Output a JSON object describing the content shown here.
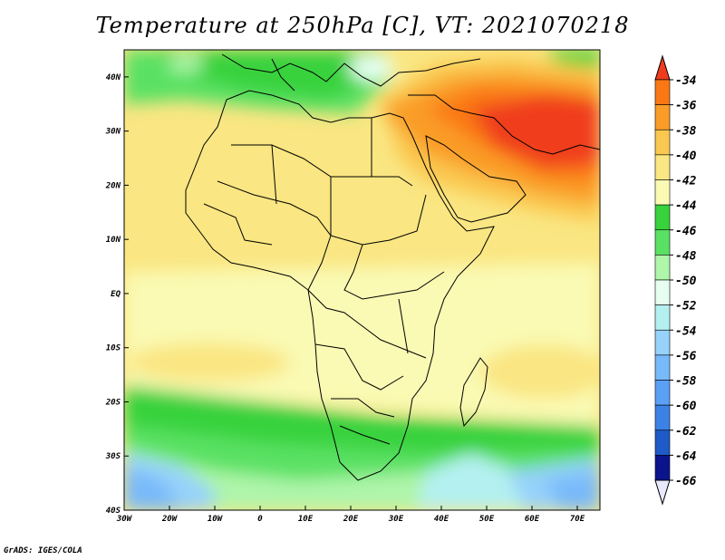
{
  "title": "Temperature at 250hPa [C], VT: 2021070218",
  "credit": "GrADS: IGES/COLA",
  "map": {
    "lon_range": [
      -30,
      75
    ],
    "lat_range": [
      -40,
      45
    ],
    "lon_ticks": [
      {
        "value": -30,
        "label": "30W"
      },
      {
        "value": -20,
        "label": "20W"
      },
      {
        "value": -10,
        "label": "10W"
      },
      {
        "value": 0,
        "label": "0"
      },
      {
        "value": 10,
        "label": "10E"
      },
      {
        "value": 20,
        "label": "20E"
      },
      {
        "value": 30,
        "label": "30E"
      },
      {
        "value": 40,
        "label": "40E"
      },
      {
        "value": 50,
        "label": "50E"
      },
      {
        "value": 60,
        "label": "60E"
      },
      {
        "value": 70,
        "label": "70E"
      }
    ],
    "lat_ticks": [
      {
        "value": 40,
        "label": "40N"
      },
      {
        "value": 30,
        "label": "30N"
      },
      {
        "value": 20,
        "label": "20N"
      },
      {
        "value": 10,
        "label": "10N"
      },
      {
        "value": 0,
        "label": "EQ"
      },
      {
        "value": -10,
        "label": "10S"
      },
      {
        "value": -20,
        "label": "20S"
      },
      {
        "value": -30,
        "label": "30S"
      },
      {
        "value": -40,
        "label": "40S"
      }
    ]
  },
  "colorbar": {
    "labels": [
      "-34",
      "-36",
      "-38",
      "-40",
      "-42",
      "-44",
      "-46",
      "-48",
      "-50",
      "-52",
      "-54",
      "-56",
      "-58",
      "-60",
      "-62",
      "-64",
      "-66"
    ],
    "colors": [
      "#f03c1e",
      "#fa7814",
      "#fa9c28",
      "#fac850",
      "#fae682",
      "#fafab4",
      "#37d23c",
      "#5ae164",
      "#aff5aa",
      "#e6fff0",
      "#b4f0f0",
      "#96d2fa",
      "#78b9fa",
      "#5aa0f5",
      "#3c82e6",
      "#1e5ac8",
      "#0a148c",
      "#e8e8ff"
    ]
  }
}
